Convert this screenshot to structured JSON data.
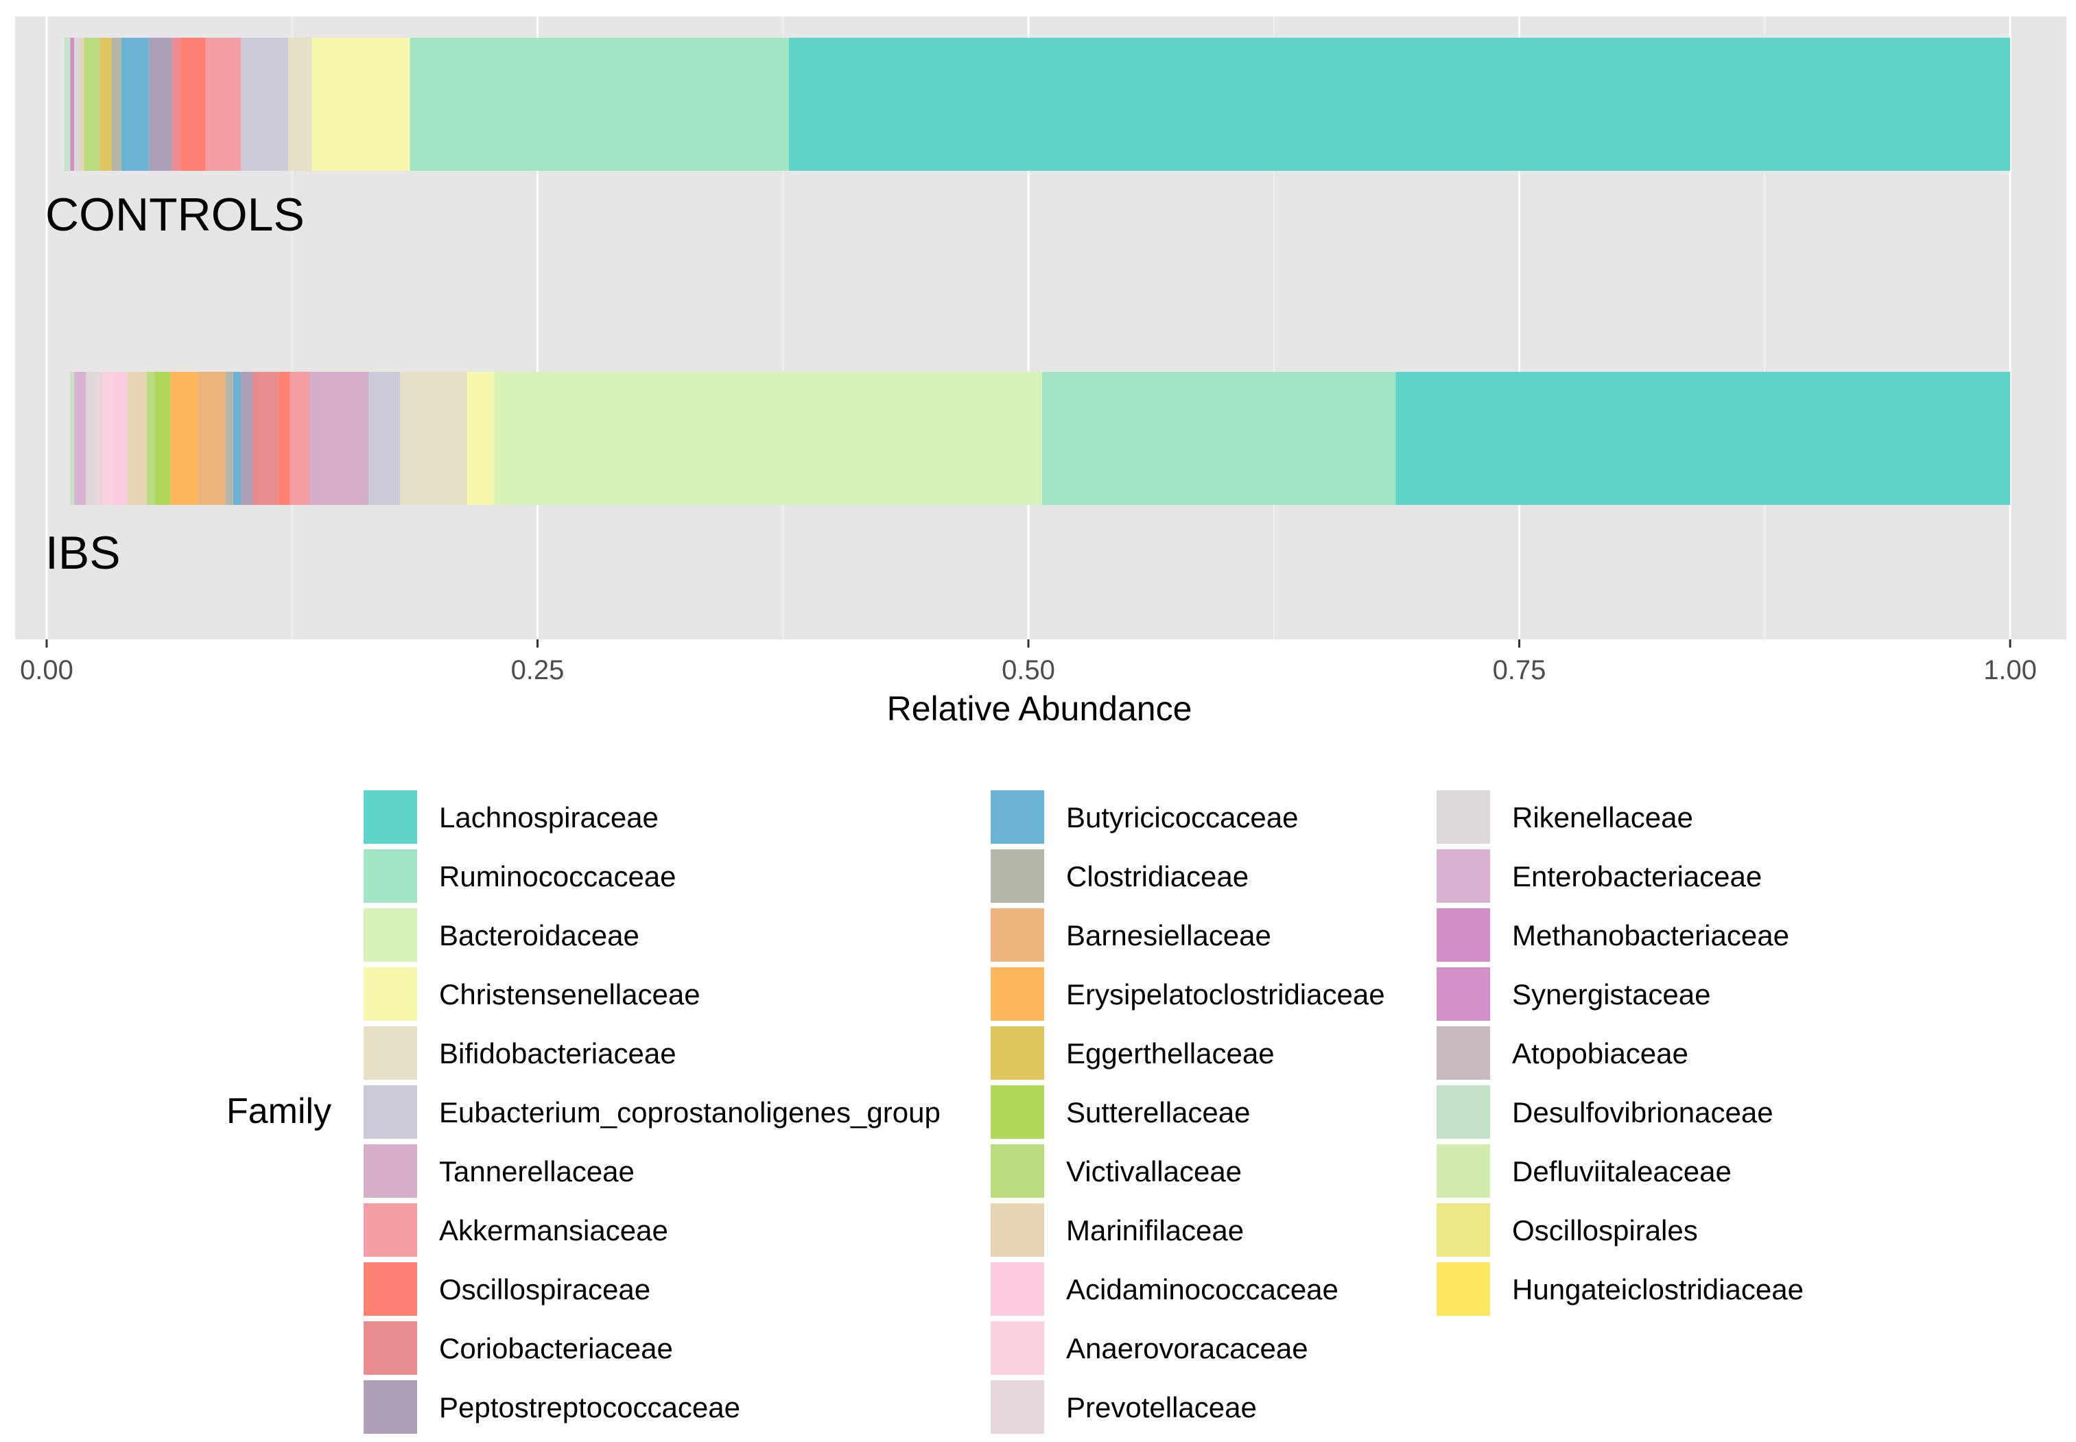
{
  "chart_data": {
    "type": "bar",
    "orientation": "horizontal",
    "stacked": true,
    "xlabel": "Relative Abundance",
    "ylabel": "",
    "xlim": [
      0,
      1
    ],
    "x_ticks": [
      {
        "value": 0,
        "label": "0.00"
      },
      {
        "value": 0.25,
        "label": "0.25"
      },
      {
        "value": 0.5,
        "label": "0.50"
      },
      {
        "value": 0.75,
        "label": "0.75"
      },
      {
        "value": 1,
        "label": "1.00"
      }
    ],
    "grid": true,
    "legend_title": "Family",
    "legend_position": "bottom",
    "categories": [
      "CONTROLS",
      "IBS"
    ],
    "families": [
      {
        "name": "Lachnospiraceae",
        "color": "#5fd4c8"
      },
      {
        "name": "Ruminococcaceae",
        "color": "#a1e5c4"
      },
      {
        "name": "Bacteroidaceae",
        "color": "#d7f2b8"
      },
      {
        "name": "Christensenellaceae",
        "color": "#f7f7ae"
      },
      {
        "name": "Bifidobacteriaceae",
        "color": "#e5e0c6"
      },
      {
        "name": "Eubacterium_coprostanoligenes_group",
        "color": "#cacad8"
      },
      {
        "name": "Tannerellaceae",
        "color": "#d5aec9"
      },
      {
        "name": "Akkermansiaceae",
        "color": "#f49ea4"
      },
      {
        "name": "Oscillospiraceae",
        "color": "#fd8274"
      },
      {
        "name": "Coriobacteriaceae",
        "color": "#e88c8e"
      },
      {
        "name": "Peptostreptococcaceae",
        "color": "#ad9fb7"
      },
      {
        "name": "Butyricicoccaceae",
        "color": "#6ab3d3"
      },
      {
        "name": "Clostridiaceae",
        "color": "#b5b6a8"
      },
      {
        "name": "Barnesiellaceae",
        "color": "#edb57d"
      },
      {
        "name": "Erysipelatoclostridiaceae",
        "color": "#feb75c"
      },
      {
        "name": "Eggerthellaceae",
        "color": "#dfc75e"
      },
      {
        "name": "Sutterellaceae",
        "color": "#b1d759"
      },
      {
        "name": "Victivallaceae",
        "color": "#badc7f"
      },
      {
        "name": "Marinifilaceae",
        "color": "#e6d5b2"
      },
      {
        "name": "Acidaminococcaceae",
        "color": "#fecce0"
      },
      {
        "name": "Anaerovoracaceae",
        "color": "#fbd1e1"
      },
      {
        "name": "Prevotellaceae",
        "color": "#e8d6dd"
      },
      {
        "name": "Rikenellaceae",
        "color": "#ddd7da"
      },
      {
        "name": "Enterobacteriaceae",
        "color": "#d8b3d1"
      },
      {
        "name": "Methanobacteriaceae",
        "color": "#d08fc5"
      },
      {
        "name": "Synergistaceae",
        "color": "#d190c6"
      },
      {
        "name": "Atopobiaceae",
        "color": "#c8b9c1"
      },
      {
        "name": "Desulfovibrionaceae",
        "color": "#c3e2c8"
      },
      {
        "name": "Defluviitaleaceae",
        "color": "#d2ecb0"
      },
      {
        "name": "Oscillospirales",
        "color": "#ece886"
      },
      {
        "name": "Hungateiclostridiaceae",
        "color": "#fde660"
      }
    ],
    "series": [
      {
        "name": "Lachnospiraceae",
        "values": [
          0.622,
          0.313
        ]
      },
      {
        "name": "Ruminococcaceae",
        "values": [
          0.193,
          0.18
        ]
      },
      {
        "name": "Bacteroidaceae",
        "values": [
          0.0,
          0.279
        ]
      },
      {
        "name": "Christensenellaceae",
        "values": [
          0.05,
          0.014
        ]
      },
      {
        "name": "Bifidobacteriaceae",
        "values": [
          0.012,
          0.034
        ]
      },
      {
        "name": "Eubacterium_coprostanoligenes_group",
        "values": [
          0.024,
          0.016
        ]
      },
      {
        "name": "Tannerellaceae",
        "values": [
          0.0,
          0.03
        ]
      },
      {
        "name": "Akkermansiaceae",
        "values": [
          0.018,
          0.01
        ]
      },
      {
        "name": "Oscillospiraceae",
        "values": [
          0.013,
          0.006
        ]
      },
      {
        "name": "Coriobacteriaceae",
        "values": [
          0.004,
          0.013
        ]
      },
      {
        "name": "Peptostreptococcaceae",
        "values": [
          0.012,
          0.006
        ]
      },
      {
        "name": "Butyricicoccaceae",
        "values": [
          0.014,
          0.004
        ]
      },
      {
        "name": "Clostridiaceae",
        "values": [
          0.005,
          0.004
        ]
      },
      {
        "name": "Barnesiellaceae",
        "values": [
          0.0,
          0.014
        ]
      },
      {
        "name": "Erysipelatoclostridiaceae",
        "values": [
          0.0,
          0.014
        ]
      },
      {
        "name": "Eggerthellaceae",
        "values": [
          0.006,
          0.0
        ]
      },
      {
        "name": "Sutterellaceae",
        "values": [
          0.0,
          0.008
        ]
      },
      {
        "name": "Victivallaceae",
        "values": [
          0.008,
          0.004
        ]
      },
      {
        "name": "Marinifilaceae",
        "values": [
          0.002,
          0.01
        ]
      },
      {
        "name": "Acidaminococcaceae",
        "values": [
          0.0,
          0.008
        ]
      },
      {
        "name": "Anaerovoracaceae",
        "values": [
          0.0,
          0.004
        ]
      },
      {
        "name": "Prevotellaceae",
        "values": [
          0.0,
          0.004
        ]
      },
      {
        "name": "Rikenellaceae",
        "values": [
          0.003,
          0.005
        ]
      },
      {
        "name": "Enterobacteriaceae",
        "values": [
          0.0,
          0.006
        ]
      },
      {
        "name": "Methanobacteriaceae",
        "values": [
          0.002,
          0.0
        ]
      },
      {
        "name": "Synergistaceae",
        "values": [
          0.0,
          0.0
        ]
      },
      {
        "name": "Atopobiaceae",
        "values": [
          0.0,
          0.0
        ]
      },
      {
        "name": "Desulfovibrionaceae",
        "values": [
          0.003,
          0.002
        ]
      },
      {
        "name": "Defluviitaleaceae",
        "values": [
          0.0,
          0.0
        ]
      },
      {
        "name": "Oscillospirales",
        "values": [
          0.0,
          0.0
        ]
      },
      {
        "name": "Hungateiclostridiaceae",
        "values": [
          0.0,
          0.0
        ]
      }
    ]
  }
}
